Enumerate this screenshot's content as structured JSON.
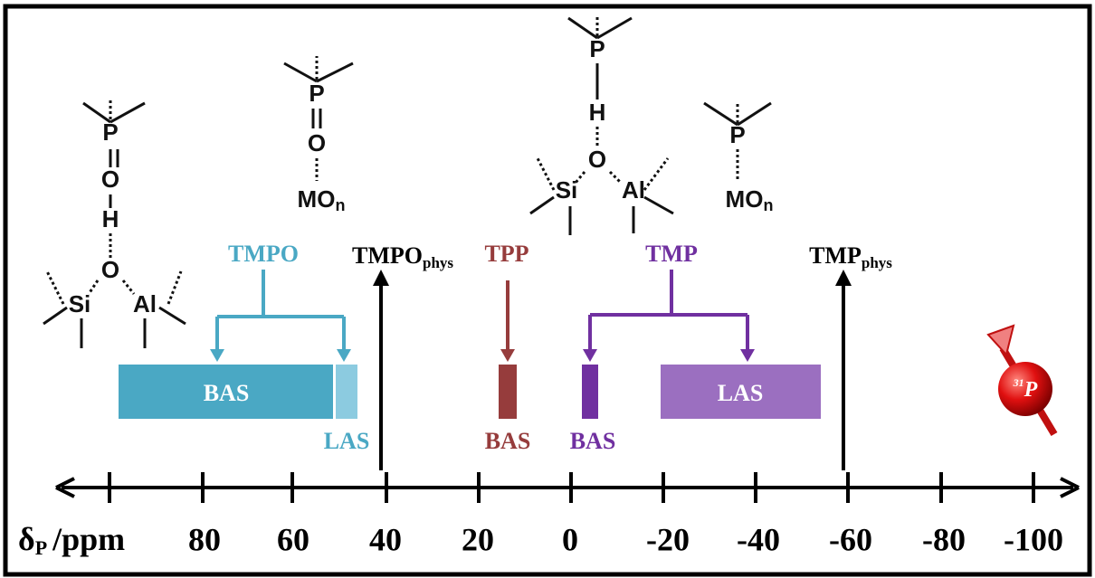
{
  "structures": [
    {
      "atoms": [
        "P",
        "O",
        "H",
        "O",
        "Si",
        "Al"
      ]
    },
    {
      "atoms": [
        "P",
        "O"
      ],
      "site": {
        "text": "MO",
        "subscript": "n"
      }
    },
    {
      "atoms": [
        "P",
        "H",
        "O",
        "Si",
        "Al"
      ]
    },
    {
      "atoms": [
        "P"
      ],
      "site": {
        "text": "MO",
        "subscript": "n"
      }
    }
  ],
  "probes": [
    {
      "name": "TMPO"
    },
    {
      "name": "TMPO",
      "subscript": "phys"
    },
    {
      "name": "TPP"
    },
    {
      "name": "TMP"
    },
    {
      "name": "TMP",
      "subscript": "phys"
    }
  ],
  "sites": [
    {
      "label": "BAS"
    },
    {
      "label": "LAS"
    },
    {
      "label": "BAS"
    },
    {
      "label": "BAS"
    },
    {
      "label": "LAS"
    }
  ],
  "axis": {
    "symbol": "δ",
    "subscript": "P",
    "unit": "/ppm",
    "ticks": [
      "80",
      "60",
      "40",
      "20",
      "0",
      "-20",
      "-40",
      "-60",
      "-80",
      "-100"
    ]
  },
  "nucleus": {
    "mass": "31",
    "symbol": "P"
  }
}
